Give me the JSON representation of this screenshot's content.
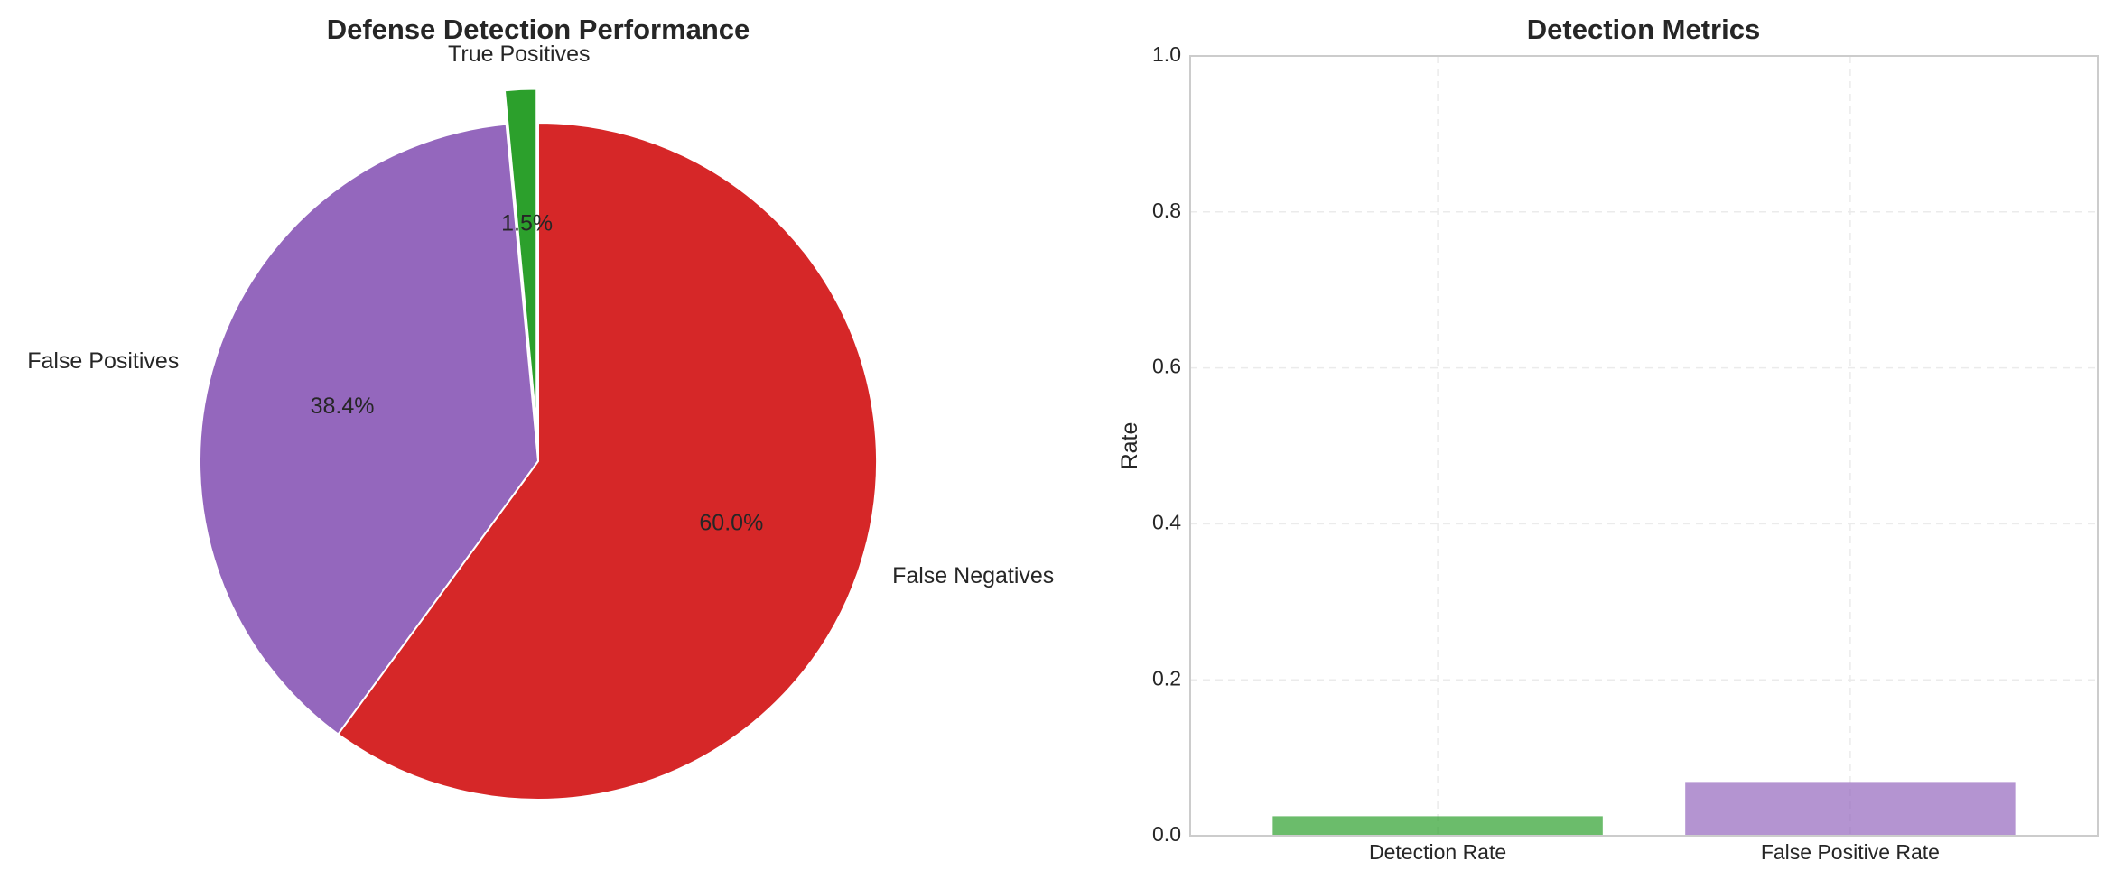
{
  "chart_data": [
    {
      "type": "pie",
      "title": "Defense Detection Performance",
      "labels": [
        "True Positives",
        "False Positives",
        "False Negatives"
      ],
      "values": [
        1.5,
        38.4,
        60.0
      ],
      "value_labels": [
        "1.5%",
        "38.4%",
        "60.0%"
      ],
      "colors": [
        "#2ca02c",
        "#9467bd",
        "#d62728"
      ],
      "explode": [
        0.1,
        0,
        0
      ],
      "start_angle_deg": 90,
      "direction": "counterclockwise"
    },
    {
      "type": "bar",
      "title": "Detection Metrics",
      "categories": [
        "Detection Rate",
        "False Positive Rate"
      ],
      "values": [
        0.025,
        0.069
      ],
      "colors": [
        "#2ca02c",
        "#9467bd"
      ],
      "ylabel": "Rate",
      "xlabel": "",
      "ylim": [
        0,
        1.0
      ],
      "yticks": [
        "0.0",
        "0.2",
        "0.4",
        "0.6",
        "0.8",
        "1.0"
      ],
      "grid": true
    }
  ]
}
